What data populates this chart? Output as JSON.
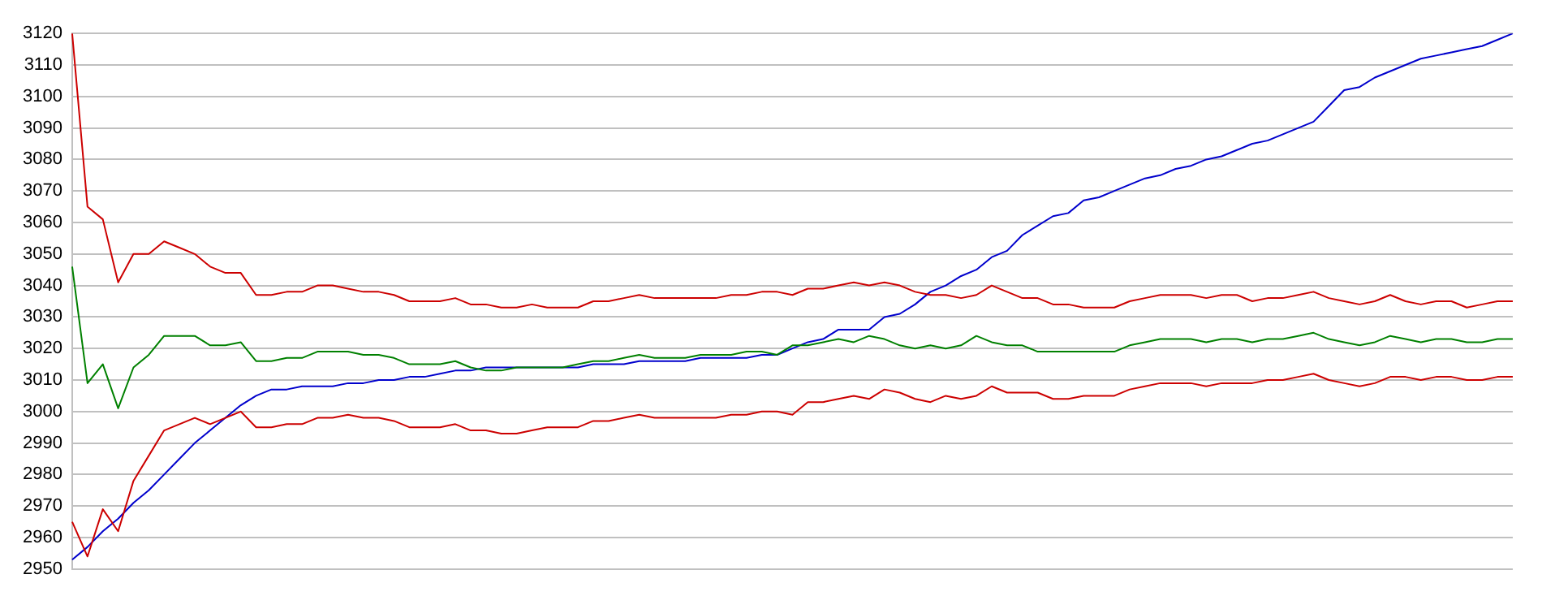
{
  "chart_data": {
    "type": "line",
    "categories": [
      null,
      null,
      null,
      null,
      null,
      null,
      null,
      null,
      null,
      null,
      null,
      null,
      null,
      null,
      null,
      null,
      null,
      null,
      null,
      null,
      null,
      null,
      null,
      null,
      null,
      null,
      null,
      null,
      null,
      null,
      null,
      null,
      null,
      null,
      null,
      null,
      null,
      null,
      null,
      null,
      null,
      null,
      null,
      null,
      null,
      null,
      null,
      null,
      null,
      null,
      null,
      null,
      null,
      null,
      null,
      null,
      null,
      null,
      null,
      null,
      null,
      null,
      null,
      null,
      null,
      null,
      null,
      null,
      null,
      null,
      null,
      null,
      null,
      null,
      null,
      null,
      null,
      null,
      null,
      null,
      null,
      null,
      null,
      null,
      null,
      null,
      null,
      null,
      null,
      null,
      null,
      null,
      null,
      null,
      null
    ],
    "series": [
      {
        "color": "#cc0000",
        "values": [
          3120,
          3065,
          3061,
          3041,
          3050,
          3050,
          3054,
          3052,
          3050,
          3046,
          3044,
          3044,
          3037,
          3037,
          3038,
          3038,
          3040,
          3040,
          3039,
          3038,
          3038,
          3037,
          3035,
          3035,
          3035,
          3036,
          3034,
          3034,
          3033,
          3033,
          3034,
          3033,
          3033,
          3033,
          3035,
          3035,
          3036,
          3037,
          3036,
          3036,
          3036,
          3036,
          3036,
          3037,
          3037,
          3038,
          3038,
          3037,
          3039,
          3039,
          3040,
          3041,
          3040,
          3041,
          3040,
          3038,
          3037,
          3037,
          3036,
          3037,
          3040,
          3038,
          3036,
          3036,
          3034,
          3034,
          3033,
          3033,
          3033,
          3035,
          3036,
          3037,
          3037,
          3037,
          3036,
          3037,
          3037,
          3035,
          3036,
          3036,
          3037,
          3038,
          3036,
          3035,
          3034,
          3035,
          3037,
          3035,
          3034,
          3035,
          3035,
          3033,
          3034,
          3035,
          3035
        ]
      },
      {
        "color": "#008000",
        "values": [
          3046,
          3009,
          3015,
          3001,
          3014,
          3018,
          3024,
          3024,
          3024,
          3021,
          3021,
          3022,
          3016,
          3016,
          3017,
          3017,
          3019,
          3019,
          3019,
          3018,
          3018,
          3017,
          3015,
          3015,
          3015,
          3016,
          3014,
          3013,
          3013,
          3014,
          3014,
          3014,
          3014,
          3015,
          3016,
          3016,
          3017,
          3018,
          3017,
          3017,
          3017,
          3018,
          3018,
          3018,
          3019,
          3019,
          3018,
          3021,
          3021,
          3022,
          3023,
          3022,
          3024,
          3023,
          3021,
          3020,
          3021,
          3020,
          3021,
          3024,
          3022,
          3021,
          3021,
          3019,
          3019,
          3019,
          3019,
          3019,
          3019,
          3021,
          3022,
          3023,
          3023,
          3023,
          3022,
          3023,
          3023,
          3022,
          3023,
          3023,
          3024,
          3025,
          3023,
          3022,
          3021,
          3022,
          3024,
          3023,
          3022,
          3023,
          3023,
          3022,
          3022,
          3023,
          3023
        ]
      },
      {
        "color": "#cc0000",
        "values": [
          2965,
          2954,
          2969,
          2962,
          2978,
          2986,
          2994,
          2996,
          2998,
          2996,
          2998,
          3000,
          2995,
          2995,
          2996,
          2996,
          2998,
          2998,
          2999,
          2998,
          2998,
          2997,
          2995,
          2995,
          2995,
          2996,
          2994,
          2994,
          2993,
          2993,
          2994,
          2995,
          2995,
          2995,
          2997,
          2997,
          2998,
          2999,
          2998,
          2998,
          2998,
          2998,
          2998,
          2999,
          2999,
          3000,
          3000,
          2999,
          3003,
          3003,
          3004,
          3005,
          3004,
          3007,
          3006,
          3004,
          3003,
          3005,
          3004,
          3005,
          3008,
          3006,
          3006,
          3006,
          3004,
          3004,
          3005,
          3005,
          3005,
          3007,
          3008,
          3009,
          3009,
          3009,
          3008,
          3009,
          3009,
          3009,
          3010,
          3010,
          3011,
          3012,
          3010,
          3009,
          3008,
          3009,
          3011,
          3011,
          3010,
          3011,
          3011,
          3010,
          3010,
          3011,
          3011
        ]
      },
      {
        "color": "#0000cc",
        "values": [
          2953,
          2957,
          2962,
          2966,
          2971,
          2975,
          2980,
          2985,
          2990,
          2994,
          2998,
          3002,
          3005,
          3007,
          3007,
          3008,
          3008,
          3008,
          3009,
          3009,
          3010,
          3010,
          3011,
          3011,
          3012,
          3013,
          3013,
          3014,
          3014,
          3014,
          3014,
          3014,
          3014,
          3014,
          3015,
          3015,
          3015,
          3016,
          3016,
          3016,
          3016,
          3017,
          3017,
          3017,
          3017,
          3018,
          3018,
          3020,
          3022,
          3023,
          3026,
          3026,
          3026,
          3030,
          3031,
          3034,
          3038,
          3040,
          3043,
          3045,
          3049,
          3051,
          3056,
          3059,
          3062,
          3063,
          3067,
          3068,
          3070,
          3072,
          3074,
          3075,
          3077,
          3078,
          3080,
          3081,
          3083,
          3085,
          3086,
          3088,
          3090,
          3092,
          3097,
          3102,
          3103,
          3106,
          3108,
          3110,
          3112,
          3113,
          3114,
          3115,
          3116,
          3118,
          3120
        ]
      }
    ],
    "ylim": [
      2950,
      3120
    ],
    "yticks": [
      2950,
      2960,
      2970,
      2980,
      2990,
      3000,
      3010,
      3020,
      3030,
      3040,
      3050,
      3060,
      3070,
      3080,
      3090,
      3100,
      3110,
      3120
    ],
    "grid": "y",
    "tick_labels": "y",
    "marker": "none",
    "line_style": "solid",
    "legend": false
  }
}
